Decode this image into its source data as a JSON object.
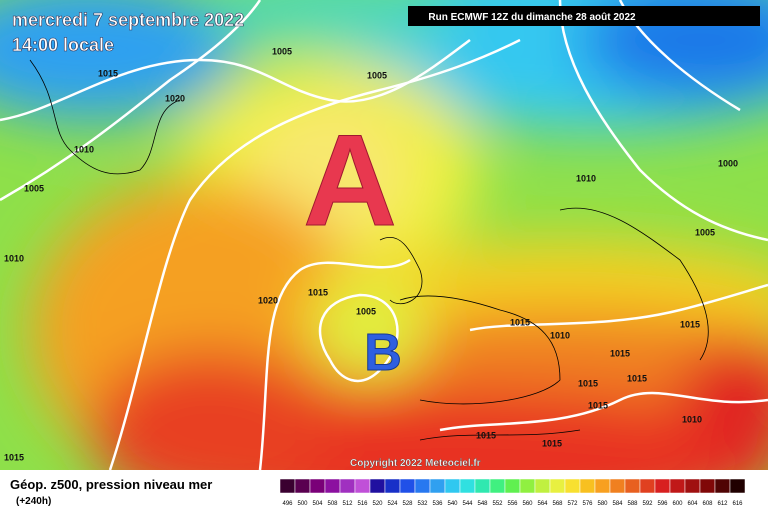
{
  "header": {
    "date": "mercredi 7 septembre 2022",
    "time": "14:00 locale",
    "run": "Run ECMWF 12Z du dimanche 28 août 2022"
  },
  "map": {
    "high": "A",
    "low": "B",
    "copyright": "Copyright 2022 Meteociel.fr",
    "isobar_labels": [
      "1005",
      "1015",
      "1005",
      "1020",
      "1010",
      "1005",
      "1010",
      "1000",
      "1005",
      "1010",
      "1020",
      "1015",
      "1005",
      "1015",
      "1010",
      "1015",
      "1015",
      "1015",
      "1015",
      "1015",
      "1015",
      "1015",
      "1010",
      "1015"
    ]
  },
  "legend": {
    "title": "Géop. z500, pression niveau mer",
    "lead": "(+240h)",
    "levels": [
      496,
      500,
      504,
      508,
      512,
      516,
      520,
      524,
      528,
      532,
      536,
      540,
      544,
      548,
      552,
      556,
      560,
      564,
      568,
      572,
      576,
      580,
      584,
      588,
      592,
      596,
      600,
      604,
      608,
      612,
      616
    ]
  }
}
